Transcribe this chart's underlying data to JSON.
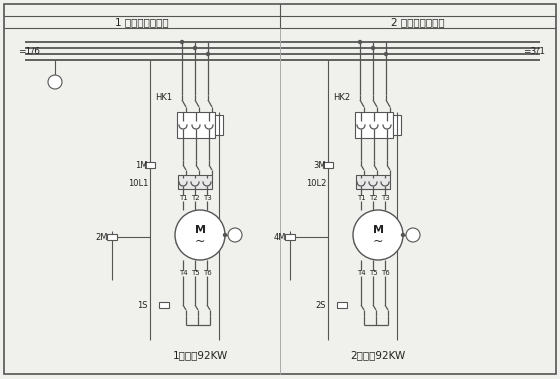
{
  "title_left": "1 号压缩机主电路",
  "title_right": "2 号压缩机主电路",
  "label_left": "=1/6",
  "label_right": "=3/1",
  "caption_left": "1号制冷92KW",
  "caption_right": "2号制冷92KW",
  "bg_color": "#f0f0ec",
  "line_color": "#555555",
  "text_color": "#222222"
}
